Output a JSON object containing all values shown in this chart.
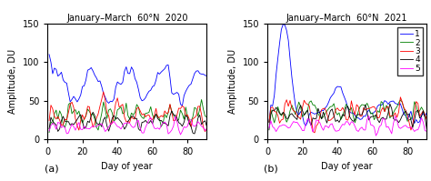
{
  "title_a": "January–March  60°N  2020",
  "title_b": "January–March  60°N  2021",
  "xlabel": "Day of year",
  "ylabel": "Amplitude, DU",
  "label_a": "(a)",
  "label_b": "(b)",
  "ylim": [
    0,
    150
  ],
  "yticks": [
    0,
    50,
    100,
    150
  ],
  "xlim": [
    0,
    91
  ],
  "xticks": [
    0,
    20,
    40,
    60,
    80
  ],
  "line_colors": [
    "blue",
    "green",
    "red",
    "black",
    "magenta"
  ],
  "legend_labels": [
    "1",
    "2",
    "3",
    "4",
    "5"
  ]
}
